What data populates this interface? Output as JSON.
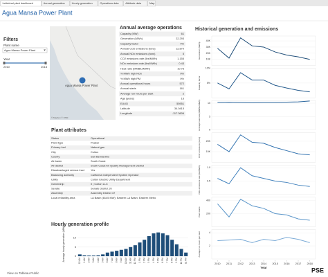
{
  "tabs": [
    "Individual plant dashboard",
    "Annual generation",
    "Hourly generation",
    "Operations data",
    "Attribute data",
    "Map"
  ],
  "header": {
    "title": "Agua Mansa Power Plant"
  },
  "filters": {
    "title": "Filters",
    "plant_label": "Plant name",
    "plant_value": "Agua Mansa Power Plant",
    "year_label": "Year",
    "year_range": [
      2010,
      2018
    ]
  },
  "map": {
    "label": "Agua Mansa Power Plant",
    "attribution": "© Mapbox © OSM"
  },
  "operations": {
    "title": "Annual average operations",
    "rows": [
      [
        "Capacity (MW)",
        "61"
      ],
      [
        "Generation (MWh)",
        "22,293"
      ],
      [
        "Capacity factor",
        "4%"
      ],
      [
        "Annual CO2 emissions (tons)",
        "12,870"
      ],
      [
        "Annual NOx emissions (tons)",
        "5"
      ],
      [
        "CO2 emissions rate (lbs/MWh)",
        "1,155"
      ],
      [
        "NOx emissions rate (lbs/MWh)",
        "0.43"
      ],
      [
        "Heat ratio (MMBtu/MWh)",
        "10.76"
      ],
      [
        "% MWh high NOx",
        "0%"
      ],
      [
        "% MWh high PM",
        "0%"
      ],
      [
        "Annual operational hours",
        "572"
      ],
      [
        "Annual starts",
        "161"
      ],
      [
        "Average run hours per start",
        "2"
      ],
      [
        "Age (years)",
        "16"
      ],
      [
        "EIA ID",
        "55951"
      ],
      [
        "Latitude",
        "34.0415"
      ],
      [
        "Longitude",
        "-117.3606"
      ]
    ]
  },
  "attributes": {
    "title": "Plant attributes",
    "rows": [
      [
        "Status",
        "Operational"
      ],
      [
        "Plant type",
        "Peaker"
      ],
      [
        "Primary fuel",
        "Natural gas"
      ],
      [
        "City",
        "Colton"
      ],
      [
        "County",
        "San Bernardino"
      ],
      [
        "Air basin",
        "South Coast"
      ],
      [
        "Air district",
        "South Coast Air Quality Management District"
      ],
      [
        "Disadvantaged census tract",
        "Yes"
      ],
      [
        "Balancing authority",
        "California Independent System Operator"
      ],
      [
        "Utility",
        "Colton Electric Utility Department"
      ],
      [
        "Ownership",
        "0 | Colton LLC"
      ],
      [
        "Senate",
        "Senate District 20"
      ],
      [
        "Assembly",
        "Assembly District 47"
      ],
      [
        "Local reliability area",
        "LA Basin (8145 MW); Eastern LA Basin; Eastern Metro"
      ]
    ]
  },
  "hourly": {
    "type": "bar",
    "title": "Hourly generation profile",
    "y_label": "Average hourly generation (MWh)",
    "categories": [
      "12 AM",
      "1 AM",
      "2 AM",
      "3 AM",
      "4 AM",
      "5 AM",
      "6 AM",
      "7 AM",
      "8 AM",
      "9 AM",
      "10 AM",
      "11 AM",
      "12 PM",
      "1 PM",
      "2 PM",
      "3 PM",
      "4 PM",
      "5 PM",
      "6 PM",
      "7 PM",
      "8 PM",
      "9 PM",
      "10 PM",
      "11 PM"
    ],
    "values": [
      1,
      0.5,
      0.4,
      0.4,
      0.5,
      1,
      2,
      2.5,
      3,
      3.5,
      4,
      5,
      6,
      7.5,
      9,
      11,
      12.5,
      13,
      12.5,
      11.5,
      9,
      6.5,
      4,
      2
    ],
    "color": "#1f4e79",
    "ylim": [
      0,
      14
    ],
    "yticks": [
      0,
      5,
      10
    ]
  },
  "history": {
    "title": "Historical generation and emissions",
    "x_label": "Year",
    "x": [
      2010,
      2011,
      2012,
      2013,
      2014,
      2015,
      2016,
      2017,
      2018
    ],
    "xlim": [
      2009.5,
      2018.5
    ],
    "xticks": [
      2010,
      2011,
      2012,
      2013,
      2014,
      2015,
      2016,
      2017,
      2018
    ],
    "panels": [
      {
        "name": "Generation (MWh)",
        "color": "#1f4e79",
        "values": [
          28000,
          12000,
          45000,
          32000,
          30000,
          22000,
          17000,
          14000,
          10000
        ],
        "ylim": [
          0,
          48000
        ],
        "yticks": [
          {
            "value": 10000,
            "label": "10K"
          },
          {
            "value": 20000,
            "label": "20K"
          },
          {
            "value": 30000,
            "label": "30K"
          },
          {
            "value": 40000,
            "label": "40K"
          }
        ]
      },
      {
        "name": "Capacity factor",
        "color": "#245a8c",
        "values": [
          5,
          3,
          8.5,
          6,
          6,
          4.2,
          3.3,
          2.5,
          2
        ],
        "ylim": [
          0,
          10
        ],
        "yticks": [
          {
            "value": 5,
            "label": "5%"
          },
          {
            "value": 10,
            "label": "10%"
          }
        ]
      },
      {
        "name": "Average heat rate (MMBtu/MWh)",
        "color": "#2a669e",
        "values": [
          10.3,
          10.4,
          10.3,
          10.2,
          10.3,
          10.3,
          10.4,
          10.5,
          10.8
        ],
        "ylim": [
          0,
          11
        ],
        "yticks": [
          0,
          5,
          10
        ]
      },
      {
        "name": "CO2 emissions (tons)",
        "color": "#3373b0",
        "values": [
          17000,
          10000,
          26000,
          19000,
          18000,
          14000,
          11000,
          8000,
          7000
        ],
        "ylim": [
          0,
          28000
        ],
        "yticks": [
          {
            "value": 10000,
            "label": "10K"
          },
          {
            "value": 20000,
            "label": "20K"
          }
        ]
      },
      {
        "name": "NOx emissions rate (lbs/MWh)",
        "color": "#4282bd",
        "values": [
          0.6,
          0.4,
          1.0,
          0.7,
          0.6,
          0.5,
          0.45,
          0.35,
          0.3
        ],
        "ylim": [
          0,
          1.1
        ],
        "yticks": [
          0.5,
          {
            "value": 1,
            "label": "1.0"
          }
        ]
      },
      {
        "name": "Plant starts",
        "color": "#5a95c9",
        "values": [
          350,
          150,
          420,
          320,
          280,
          200,
          180,
          120,
          100
        ],
        "ylim": [
          0,
          450
        ],
        "yticks": [
          200,
          400
        ]
      },
      {
        "name": "Average run hours per start",
        "color": "#7aaad6",
        "values": [
          2.8,
          2.9,
          3.0,
          2.5,
          3.0,
          2.8,
          3.3,
          3.0,
          2.5
        ],
        "ylim": [
          0,
          4.5
        ],
        "yticks": [
          2,
          4
        ]
      }
    ]
  },
  "footer": {
    "link": "View on Tableau Public",
    "logo": "PSE"
  }
}
